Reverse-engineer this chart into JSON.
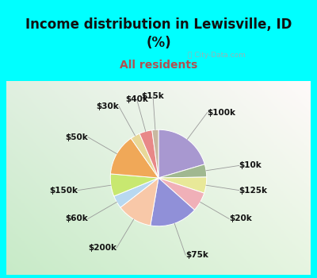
{
  "title": "Income distribution in Lewisville, ID\n(%)",
  "subtitle": "All residents",
  "title_fontsize": 12,
  "subtitle_fontsize": 10,
  "title_color": "#111111",
  "subtitle_color": "#b05050",
  "bg_cyan": "#00FFFF",
  "chart_bg": "#e8f5ee",
  "watermark": "ⓘ City-Data.com",
  "slices": [
    {
      "label": "$100k",
      "value": 19,
      "color": "#a898d0"
    },
    {
      "label": "$10k",
      "value": 4,
      "color": "#a0b890"
    },
    {
      "label": "$125k",
      "value": 5,
      "color": "#e8e898"
    },
    {
      "label": "$20k",
      "value": 6,
      "color": "#f0b0b8"
    },
    {
      "label": "$75k",
      "value": 15,
      "color": "#9090d8"
    },
    {
      "label": "$200k",
      "value": 11,
      "color": "#f8c8a8"
    },
    {
      "label": "$60k",
      "value": 4,
      "color": "#b8d8f0"
    },
    {
      "label": "$150k",
      "value": 7,
      "color": "#c8e870"
    },
    {
      "label": "$50k",
      "value": 13,
      "color": "#f0a858"
    },
    {
      "label": "$30k",
      "value": 3,
      "color": "#e8d898"
    },
    {
      "label": "$40k",
      "value": 4,
      "color": "#e88888"
    },
    {
      "label": "$15k",
      "value": 2,
      "color": "#c8b8a0"
    }
  ],
  "label_fontsize": 7.5,
  "label_color": "#111111",
  "label_fontweight": "bold"
}
